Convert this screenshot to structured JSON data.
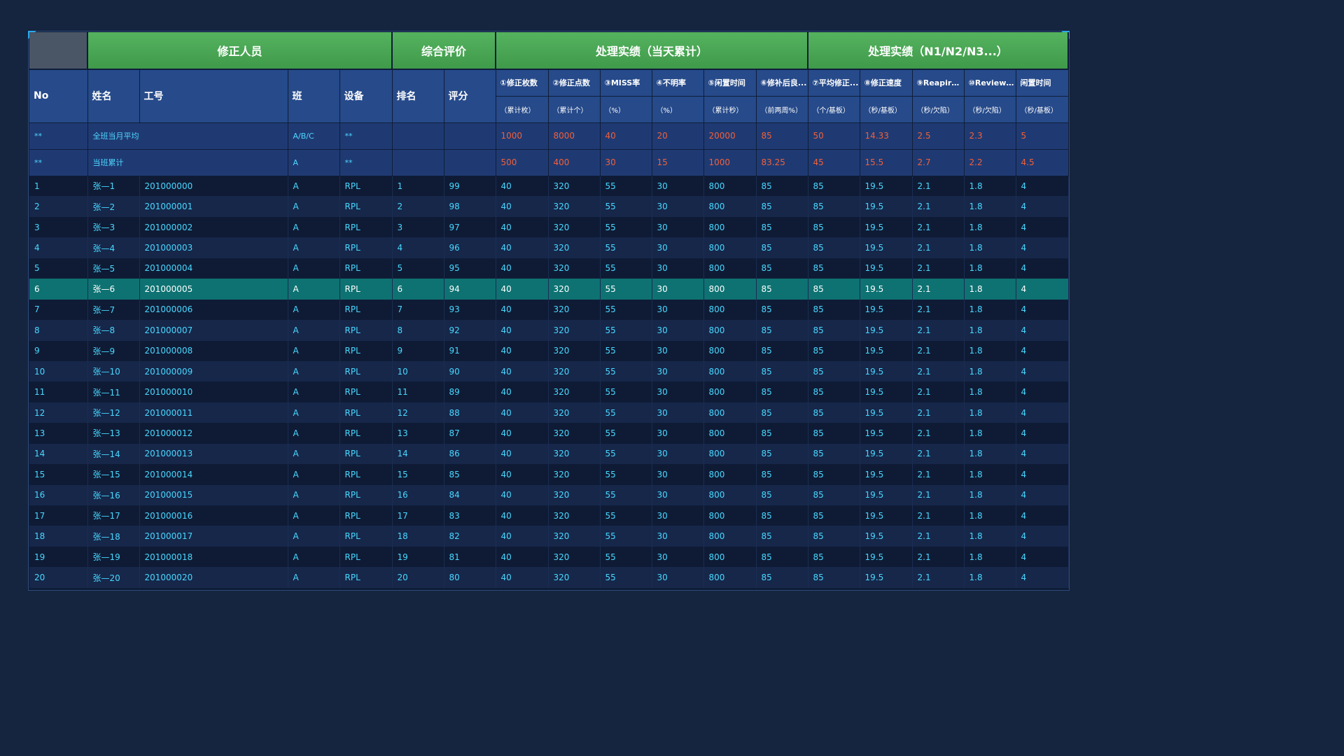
{
  "groups": {
    "personnel": "修正人员",
    "evaluation": "综合评价",
    "today": "处理实绩（当天累计）",
    "n_series": "处理实绩（N1/N2/N3...）"
  },
  "headers": {
    "no": "No",
    "name": "姓名",
    "id": "工号",
    "shift": "班",
    "device": "设备",
    "rank": "排名",
    "score": "评分",
    "metrics": [
      {
        "label": "①修正枚数",
        "unit": "（累计枚）"
      },
      {
        "label": "②修正点数",
        "unit": "（累计个）"
      },
      {
        "label": "③MISS率",
        "unit": "（%）"
      },
      {
        "label": "④不明率",
        "unit": "（%）"
      },
      {
        "label": "⑤闲置时间",
        "unit": "（累计秒）"
      },
      {
        "label": "⑥修补后良...",
        "unit": "（前两周%）"
      },
      {
        "label": "⑦平均修正...",
        "unit": "（个/基板）"
      },
      {
        "label": "⑧修正速度",
        "unit": "（秒/基板）"
      },
      {
        "label": "⑨Reapir速...",
        "unit": "（秒/欠陷）"
      },
      {
        "label": "⑩Review速...",
        "unit": "（秒/欠陷）"
      },
      {
        "label": "闲置时间",
        "unit": "（秒/基板）"
      }
    ]
  },
  "summary": [
    {
      "no": "**",
      "name": "全班当月平均",
      "shift": "A/B/C",
      "device": "**",
      "values": [
        "1000",
        "8000",
        "40",
        "20",
        "20000",
        "85",
        "50",
        "14.33",
        "2.5",
        "2.3",
        "5"
      ]
    },
    {
      "no": "**",
      "name": "当班累计",
      "shift": "A",
      "device": "**",
      "values": [
        "500",
        "400",
        "30",
        "15",
        "1000",
        "83.25",
        "45",
        "15.5",
        "2.7",
        "2.2",
        "4.5"
      ]
    }
  ],
  "rows": [
    {
      "no": "1",
      "name": "张—1",
      "id": "201000000",
      "shift": "A",
      "device": "RPL",
      "rank": "1",
      "score": "99",
      "values": [
        "40",
        "320",
        "55",
        "30",
        "800",
        "85",
        "85",
        "19.5",
        "2.1",
        "1.8",
        "4"
      ]
    },
    {
      "no": "2",
      "name": "张—2",
      "id": "201000001",
      "shift": "A",
      "device": "RPL",
      "rank": "2",
      "score": "98",
      "values": [
        "40",
        "320",
        "55",
        "30",
        "800",
        "85",
        "85",
        "19.5",
        "2.1",
        "1.8",
        "4"
      ]
    },
    {
      "no": "3",
      "name": "张—3",
      "id": "201000002",
      "shift": "A",
      "device": "RPL",
      "rank": "3",
      "score": "97",
      "values": [
        "40",
        "320",
        "55",
        "30",
        "800",
        "85",
        "85",
        "19.5",
        "2.1",
        "1.8",
        "4"
      ]
    },
    {
      "no": "4",
      "name": "张—4",
      "id": "201000003",
      "shift": "A",
      "device": "RPL",
      "rank": "4",
      "score": "96",
      "values": [
        "40",
        "320",
        "55",
        "30",
        "800",
        "85",
        "85",
        "19.5",
        "2.1",
        "1.8",
        "4"
      ]
    },
    {
      "no": "5",
      "name": "张—5",
      "id": "201000004",
      "shift": "A",
      "device": "RPL",
      "rank": "5",
      "score": "95",
      "values": [
        "40",
        "320",
        "55",
        "30",
        "800",
        "85",
        "85",
        "19.5",
        "2.1",
        "1.8",
        "4"
      ]
    },
    {
      "no": "6",
      "name": "张—6",
      "id": "201000005",
      "shift": "A",
      "device": "RPL",
      "rank": "6",
      "score": "94",
      "values": [
        "40",
        "320",
        "55",
        "30",
        "800",
        "85",
        "85",
        "19.5",
        "2.1",
        "1.8",
        "4"
      ],
      "selected": true
    },
    {
      "no": "7",
      "name": "张—7",
      "id": "201000006",
      "shift": "A",
      "device": "RPL",
      "rank": "7",
      "score": "93",
      "values": [
        "40",
        "320",
        "55",
        "30",
        "800",
        "85",
        "85",
        "19.5",
        "2.1",
        "1.8",
        "4"
      ]
    },
    {
      "no": "8",
      "name": "张—8",
      "id": "201000007",
      "shift": "A",
      "device": "RPL",
      "rank": "8",
      "score": "92",
      "values": [
        "40",
        "320",
        "55",
        "30",
        "800",
        "85",
        "85",
        "19.5",
        "2.1",
        "1.8",
        "4"
      ]
    },
    {
      "no": "9",
      "name": "张—9",
      "id": "201000008",
      "shift": "A",
      "device": "RPL",
      "rank": "9",
      "score": "91",
      "values": [
        "40",
        "320",
        "55",
        "30",
        "800",
        "85",
        "85",
        "19.5",
        "2.1",
        "1.8",
        "4"
      ]
    },
    {
      "no": "10",
      "name": "张—10",
      "id": "201000009",
      "shift": "A",
      "device": "RPL",
      "rank": "10",
      "score": "90",
      "values": [
        "40",
        "320",
        "55",
        "30",
        "800",
        "85",
        "85",
        "19.5",
        "2.1",
        "1.8",
        "4"
      ]
    },
    {
      "no": "11",
      "name": "张—11",
      "id": "201000010",
      "shift": "A",
      "device": "RPL",
      "rank": "11",
      "score": "89",
      "values": [
        "40",
        "320",
        "55",
        "30",
        "800",
        "85",
        "85",
        "19.5",
        "2.1",
        "1.8",
        "4"
      ]
    },
    {
      "no": "12",
      "name": "张—12",
      "id": "201000011",
      "shift": "A",
      "device": "RPL",
      "rank": "12",
      "score": "88",
      "values": [
        "40",
        "320",
        "55",
        "30",
        "800",
        "85",
        "85",
        "19.5",
        "2.1",
        "1.8",
        "4"
      ]
    },
    {
      "no": "13",
      "name": "张—13",
      "id": "201000012",
      "shift": "A",
      "device": "RPL",
      "rank": "13",
      "score": "87",
      "values": [
        "40",
        "320",
        "55",
        "30",
        "800",
        "85",
        "85",
        "19.5",
        "2.1",
        "1.8",
        "4"
      ]
    },
    {
      "no": "14",
      "name": "张—14",
      "id": "201000013",
      "shift": "A",
      "device": "RPL",
      "rank": "14",
      "score": "86",
      "values": [
        "40",
        "320",
        "55",
        "30",
        "800",
        "85",
        "85",
        "19.5",
        "2.1",
        "1.8",
        "4"
      ]
    },
    {
      "no": "15",
      "name": "张—15",
      "id": "201000014",
      "shift": "A",
      "device": "RPL",
      "rank": "15",
      "score": "85",
      "values": [
        "40",
        "320",
        "55",
        "30",
        "800",
        "85",
        "85",
        "19.5",
        "2.1",
        "1.8",
        "4"
      ]
    },
    {
      "no": "16",
      "name": "张—16",
      "id": "201000015",
      "shift": "A",
      "device": "RPL",
      "rank": "16",
      "score": "84",
      "values": [
        "40",
        "320",
        "55",
        "30",
        "800",
        "85",
        "85",
        "19.5",
        "2.1",
        "1.8",
        "4"
      ]
    },
    {
      "no": "17",
      "name": "张—17",
      "id": "201000016",
      "shift": "A",
      "device": "RPL",
      "rank": "17",
      "score": "83",
      "values": [
        "40",
        "320",
        "55",
        "30",
        "800",
        "85",
        "85",
        "19.5",
        "2.1",
        "1.8",
        "4"
      ]
    },
    {
      "no": "18",
      "name": "张—18",
      "id": "201000017",
      "shift": "A",
      "device": "RPL",
      "rank": "18",
      "score": "82",
      "values": [
        "40",
        "320",
        "55",
        "30",
        "800",
        "85",
        "85",
        "19.5",
        "2.1",
        "1.8",
        "4"
      ]
    },
    {
      "no": "19",
      "name": "张—19",
      "id": "201000018",
      "shift": "A",
      "device": "RPL",
      "rank": "19",
      "score": "81",
      "values": [
        "40",
        "320",
        "55",
        "30",
        "800",
        "85",
        "85",
        "19.5",
        "2.1",
        "1.8",
        "4"
      ]
    },
    {
      "no": "20",
      "name": "张—20",
      "id": "201000020",
      "shift": "A",
      "device": "RPL",
      "rank": "20",
      "score": "80",
      "values": [
        "40",
        "320",
        "55",
        "30",
        "800",
        "85",
        "85",
        "19.5",
        "2.1",
        "1.8",
        "4"
      ]
    }
  ],
  "colors": {
    "header_green": "#4caf50",
    "header_blue": "#264a8a",
    "summary_bg": "#1f3a73",
    "row_odd": "#0f1b35",
    "row_even": "#16274a",
    "selected_row": "#0e7272",
    "cyan_text": "#49d8ff",
    "red_text": "#f0603a"
  }
}
